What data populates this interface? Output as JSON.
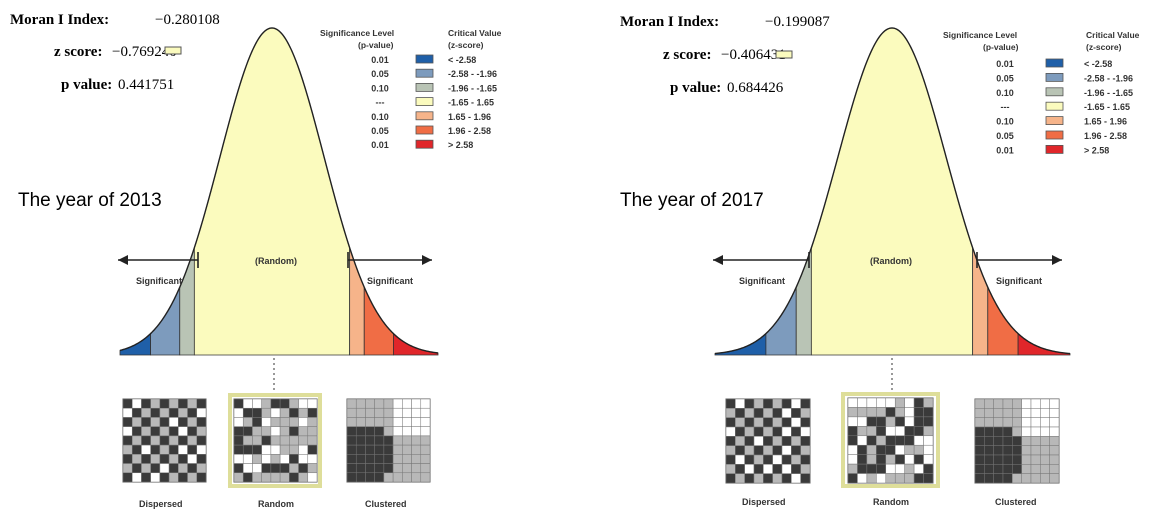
{
  "legend_header": {
    "sig_title_line1": "Significance Level",
    "sig_title_line2": "(p-value)",
    "crit_title_line1": "Critical Value",
    "crit_title_line2": "(z-score)"
  },
  "legend_rows": [
    {
      "p": "0.01",
      "z": "< -2.58",
      "color": "#1f5fa8"
    },
    {
      "p": "0.05",
      "z": "-2.58 - -1.96",
      "color": "#7d9bbd"
    },
    {
      "p": "0.10",
      "z": "-1.96 - -1.65",
      "color": "#b9c4b5"
    },
    {
      "p": "---",
      "z": "-1.65 - 1.65",
      "color": "#fbfbbe"
    },
    {
      "p": "0.10",
      "z": "1.65 - 1.96",
      "color": "#f6b48a"
    },
    {
      "p": "0.05",
      "z": "1.96 - 2.58",
      "color": "#f06d45"
    },
    {
      "p": "0.01",
      "z": "> 2.58",
      "color": "#e0262a"
    }
  ],
  "curve_labels": {
    "random": "(Random)",
    "significant_left": "Significant",
    "significant_right": "Significant"
  },
  "pattern_labels": {
    "dispersed": "Dispersed",
    "random": "Random",
    "clustered": "Clustered"
  },
  "stats_labels": {
    "moran": "Moran I Index:",
    "z": "z score:",
    "p": "p value:"
  },
  "panels": [
    {
      "year_label": "The year of 2013",
      "moran_value": "−0.280108",
      "z_value": "−0.769240",
      "p_value": "0.441751"
    },
    {
      "year_label": "The year of 2017",
      "moran_value": "−0.199087",
      "z_value": "−0.406431",
      "p_value": "0.684426"
    }
  ],
  "colors": {
    "curve_fill": "#fbfbbe",
    "dark_cell": "#3a3a3a",
    "mid_cell": "#b8b8b8",
    "random_frame": "#e6e6a8"
  }
}
